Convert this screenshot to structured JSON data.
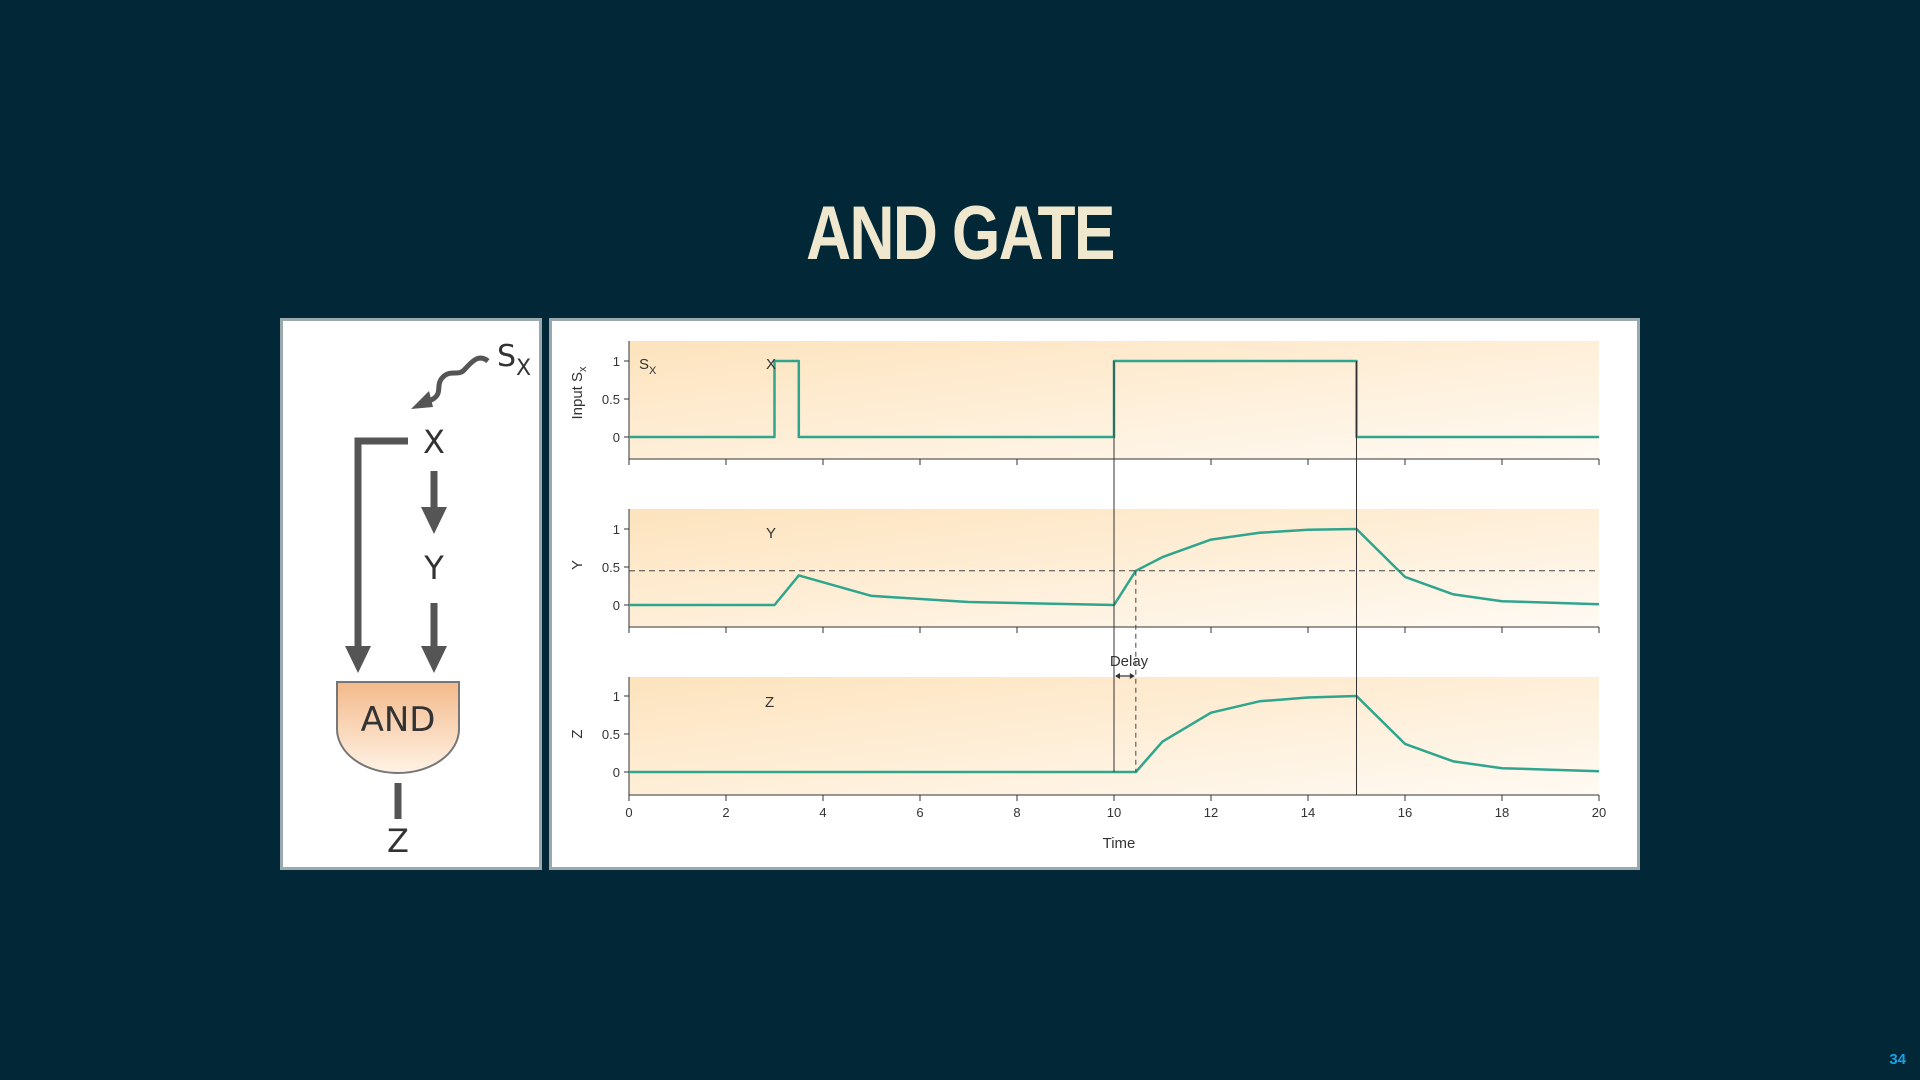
{
  "slide": {
    "title": "AND GATE",
    "page_number": "34"
  },
  "circuit": {
    "signal_label": "S",
    "signal_sub": "X",
    "node_x": "X",
    "node_y": "Y",
    "gate_label": "AND",
    "output_label": "Z",
    "colors": {
      "arrow": "#555555",
      "gate_top": "#f3b98a",
      "gate_bottom": "#fff3e6"
    }
  },
  "plots": {
    "x_label": "Time",
    "x_ticks": [
      "0",
      "2",
      "4",
      "6",
      "8",
      "10",
      "12",
      "14",
      "16",
      "18",
      "20"
    ],
    "y_ticks": [
      "0",
      "0.5",
      "1"
    ],
    "delay_label": "Delay",
    "line_color": "#2fa58e",
    "panel_1": {
      "y_label": "Input S",
      "y_label_sub": "x",
      "label_s": "S",
      "label_s_sub": "X",
      "label_x": "X"
    },
    "panel_2": {
      "y_label": "Y",
      "label": "Y"
    },
    "panel_3": {
      "y_label": "Z",
      "label": "Z"
    }
  },
  "chart_data": {
    "type": "line",
    "x_range": [
      0,
      20
    ],
    "y_range": [
      0,
      1
    ],
    "xlabel": "Time",
    "threshold": 0.45,
    "delay": [
      10,
      10.45
    ],
    "panels": [
      {
        "ylabel": "Input Sx",
        "series": [
          {
            "name": "X",
            "points": [
              [
                0,
                0
              ],
              [
                3,
                0
              ],
              [
                3,
                1
              ],
              [
                3.5,
                1
              ],
              [
                3.5,
                0
              ],
              [
                10,
                0
              ],
              [
                10,
                1
              ],
              [
                15,
                1
              ],
              [
                15,
                0
              ],
              [
                20,
                0
              ]
            ]
          }
        ]
      },
      {
        "ylabel": "Y",
        "series": [
          {
            "name": "Y",
            "points": [
              [
                0,
                0
              ],
              [
                3,
                0
              ],
              [
                3.5,
                0.39
              ],
              [
                5,
                0.12
              ],
              [
                7,
                0.04
              ],
              [
                10,
                0
              ],
              [
                10.45,
                0.45
              ],
              [
                11,
                0.63
              ],
              [
                12,
                0.86
              ],
              [
                13,
                0.95
              ],
              [
                14,
                0.99
              ],
              [
                15,
                1
              ],
              [
                16,
                0.37
              ],
              [
                17,
                0.14
              ],
              [
                18,
                0.05
              ],
              [
                20,
                0.01
              ]
            ]
          }
        ]
      },
      {
        "ylabel": "Z",
        "series": [
          {
            "name": "Z",
            "points": [
              [
                0,
                0
              ],
              [
                10.45,
                0
              ],
              [
                11,
                0.4
              ],
              [
                12,
                0.78
              ],
              [
                13,
                0.93
              ],
              [
                14,
                0.98
              ],
              [
                15,
                1
              ],
              [
                16,
                0.37
              ],
              [
                17,
                0.14
              ],
              [
                18,
                0.05
              ],
              [
                20,
                0.01
              ]
            ]
          }
        ]
      }
    ]
  }
}
